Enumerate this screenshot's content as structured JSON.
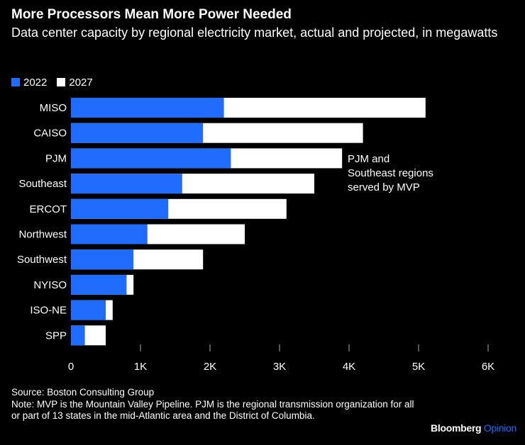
{
  "chart_data": {
    "type": "bar",
    "orientation": "horizontal",
    "title": "More Processors Mean More Power Needed",
    "subtitle": "Data center capacity by regional electricity market, actual and projected, in megawatts",
    "categories": [
      "MISO",
      "CAISO",
      "PJM",
      "Southeast",
      "ERCOT",
      "Northwest",
      "Southwest",
      "NYISO",
      "ISO-NE",
      "SPP"
    ],
    "series": [
      {
        "name": "2022",
        "color": "#1f6cff",
        "values": [
          2200,
          1900,
          2300,
          1600,
          1400,
          1100,
          900,
          800,
          500,
          200
        ]
      },
      {
        "name": "2027",
        "color": "#ffffff",
        "values": [
          5100,
          4200,
          3900,
          3500,
          3100,
          2500,
          1900,
          900,
          600,
          500
        ]
      }
    ],
    "xlim": [
      0,
      6000
    ],
    "xticks": [
      0,
      1000,
      2000,
      3000,
      4000,
      5000,
      6000
    ],
    "xtick_labels": [
      "0",
      "1K",
      "2K",
      "3K",
      "4K",
      "5K",
      "6K"
    ],
    "annotation": "PJM and Southeast regions served by MVP",
    "legend_placement": "top-left",
    "grid": false
  },
  "footer": {
    "source": "Source: Boston Consulting Group",
    "note": "Note: MVP is the Mountain Valley Pipeline. PJM is the regional transmission organization for all or part of 13 states in the mid-Atlantic area and the District of Columbia."
  },
  "brand": {
    "name": "Bloomberg",
    "suffix": "Opinion",
    "suffix_color": "#1f6cff"
  }
}
